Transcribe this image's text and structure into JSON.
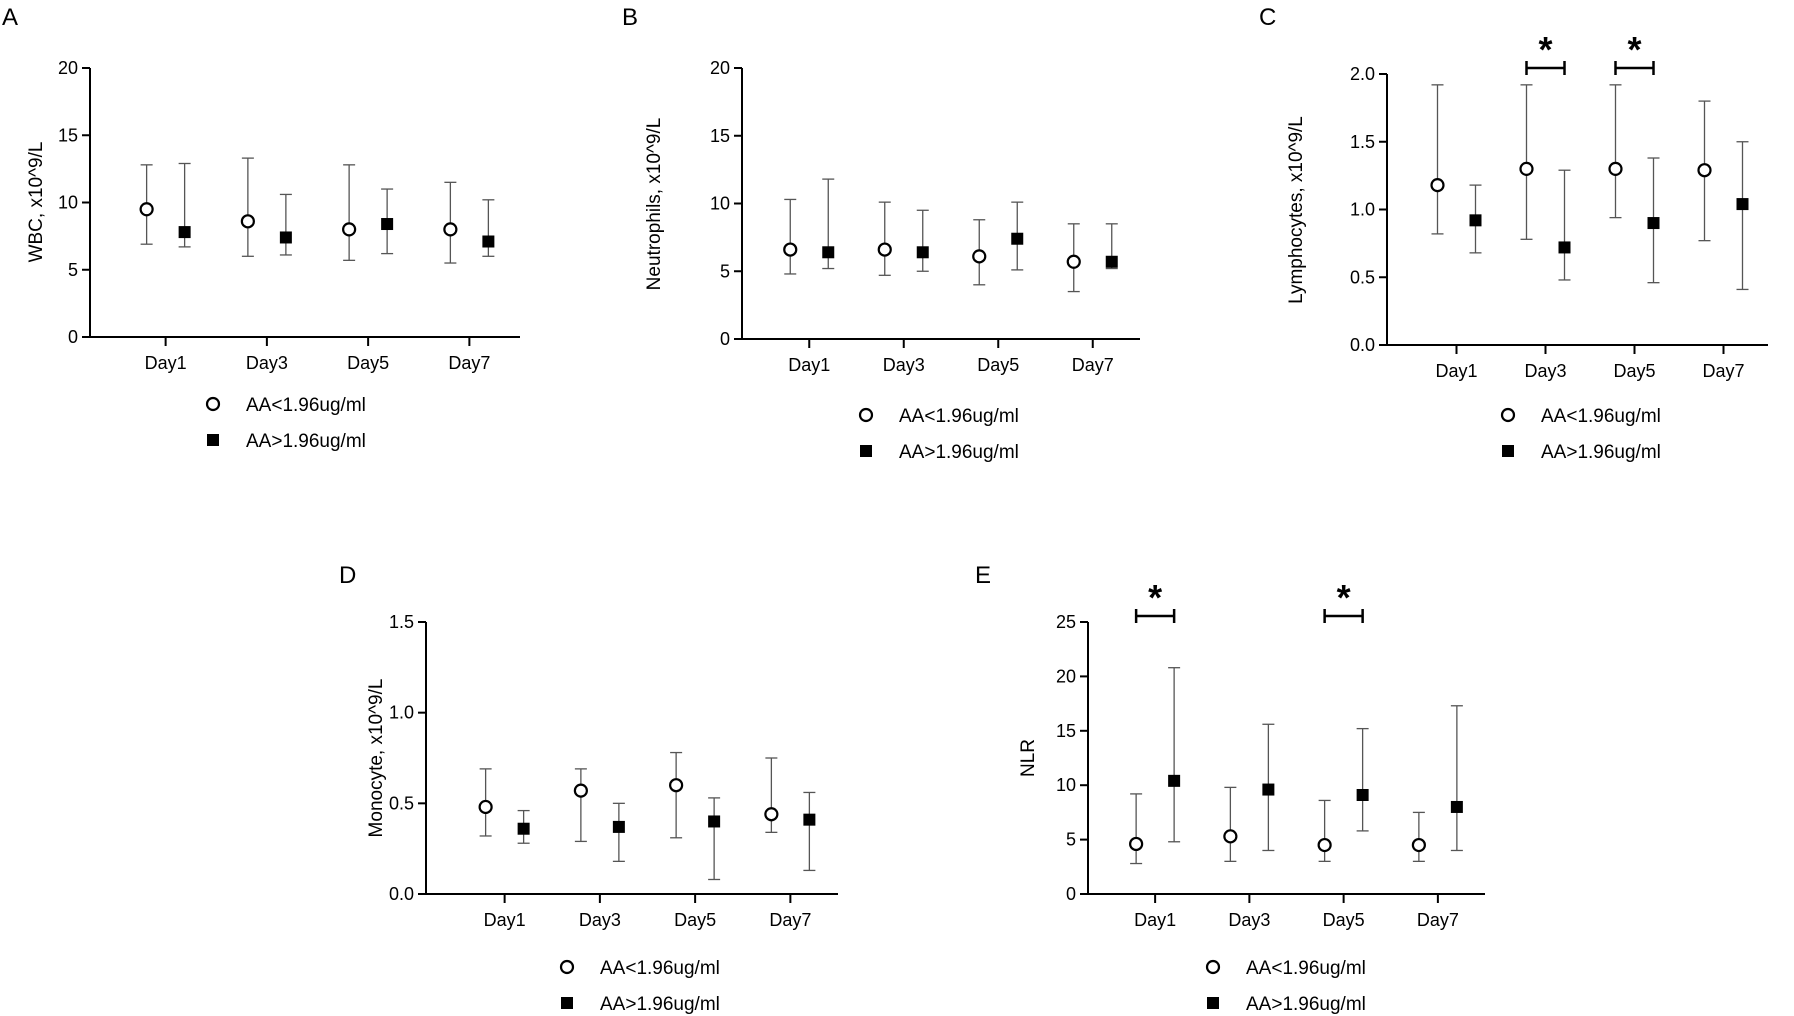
{
  "chart_data": [
    {
      "type": "scatter",
      "panel": "A",
      "ylabel": "WBC, x10^9/L",
      "categories": [
        "Day1",
        "Day3",
        "Day5",
        "Day7"
      ],
      "ylim": [
        0,
        20
      ],
      "yticks": [
        0,
        5,
        10,
        15,
        20
      ],
      "series": [
        {
          "name": "AA<1.96ug/ml",
          "marker": "open-circle",
          "values": [
            9.5,
            8.6,
            8.0,
            8.0
          ],
          "lower": [
            6.9,
            6.0,
            5.7,
            5.5
          ],
          "upper": [
            12.8,
            13.3,
            12.8,
            11.5
          ]
        },
        {
          "name": "AA>1.96ug/ml",
          "marker": "filled-square",
          "values": [
            7.8,
            7.4,
            8.4,
            7.1
          ],
          "lower": [
            6.7,
            6.1,
            6.2,
            6.0
          ],
          "upper": [
            12.9,
            10.6,
            11.0,
            10.2
          ]
        }
      ],
      "significance": []
    },
    {
      "type": "scatter",
      "panel": "B",
      "ylabel": "Neutrophils, x10^9/L",
      "categories": [
        "Day1",
        "Day3",
        "Day5",
        "Day7"
      ],
      "ylim": [
        0,
        20
      ],
      "yticks": [
        0,
        5,
        10,
        15,
        20
      ],
      "series": [
        {
          "name": "AA<1.96ug/ml",
          "marker": "open-circle",
          "values": [
            6.6,
            6.6,
            6.1,
            5.7
          ],
          "lower": [
            4.8,
            4.7,
            4.0,
            3.5
          ],
          "upper": [
            10.3,
            10.1,
            8.8,
            8.5
          ]
        },
        {
          "name": "AA>1.96ug/ml",
          "marker": "filled-square",
          "values": [
            6.4,
            6.4,
            7.4,
            5.7
          ],
          "lower": [
            5.2,
            5.0,
            5.1,
            5.2
          ],
          "upper": [
            11.8,
            9.5,
            10.1,
            8.5
          ]
        }
      ],
      "significance": []
    },
    {
      "type": "scatter",
      "panel": "C",
      "ylabel": "Lymphocytes, x10^9/L",
      "categories": [
        "Day1",
        "Day3",
        "Day5",
        "Day7"
      ],
      "ylim": [
        0,
        2.0
      ],
      "yticks": [
        0.0,
        0.5,
        1.0,
        1.5,
        2.0
      ],
      "ytick_labels": [
        "0.0",
        "0.5",
        "1.0",
        "1.5",
        "2.0"
      ],
      "series": [
        {
          "name": "AA<1.96ug/ml",
          "marker": "open-circle",
          "values": [
            1.18,
            1.3,
            1.3,
            1.29
          ],
          "lower": [
            0.82,
            0.78,
            0.94,
            0.77
          ],
          "upper": [
            1.92,
            1.92,
            1.92,
            1.8
          ]
        },
        {
          "name": "AA>1.96ug/ml",
          "marker": "filled-square",
          "values": [
            0.92,
            0.72,
            0.9,
            1.04
          ],
          "lower": [
            0.68,
            0.48,
            0.46,
            0.41
          ],
          "upper": [
            1.18,
            1.29,
            1.38,
            1.5
          ]
        }
      ],
      "significance": [
        {
          "category": "Day3",
          "label": "*"
        },
        {
          "category": "Day5",
          "label": "*"
        }
      ]
    },
    {
      "type": "scatter",
      "panel": "D",
      "ylabel": "Monocyte, x10^9/L",
      "categories": [
        "Day1",
        "Day3",
        "Day5",
        "Day7"
      ],
      "ylim": [
        0,
        1.5
      ],
      "yticks": [
        0.0,
        0.5,
        1.0,
        1.5
      ],
      "ytick_labels": [
        "0.0",
        "0.5",
        "1.0",
        "1.5"
      ],
      "series": [
        {
          "name": "AA<1.96ug/ml",
          "marker": "open-circle",
          "values": [
            0.48,
            0.57,
            0.6,
            0.44
          ],
          "lower": [
            0.32,
            0.29,
            0.31,
            0.34
          ],
          "upper": [
            0.69,
            0.69,
            0.78,
            0.75
          ]
        },
        {
          "name": "AA>1.96ug/ml",
          "marker": "filled-square",
          "values": [
            0.36,
            0.37,
            0.4,
            0.41
          ],
          "lower": [
            0.28,
            0.18,
            0.08,
            0.13
          ],
          "upper": [
            0.46,
            0.5,
            0.53,
            0.56
          ]
        }
      ],
      "significance": []
    },
    {
      "type": "scatter",
      "panel": "E",
      "ylabel": "NLR",
      "categories": [
        "Day1",
        "Day3",
        "Day5",
        "Day7"
      ],
      "ylim": [
        0,
        25
      ],
      "yticks": [
        0,
        5,
        10,
        15,
        20,
        25
      ],
      "series": [
        {
          "name": "AA<1.96ug/ml",
          "marker": "open-circle",
          "values": [
            4.6,
            5.3,
            4.5,
            4.5
          ],
          "lower": [
            2.8,
            3.0,
            3.0,
            3.0
          ],
          "upper": [
            9.2,
            9.8,
            8.6,
            7.5
          ]
        },
        {
          "name": "AA>1.96ug/ml",
          "marker": "filled-square",
          "values": [
            10.4,
            9.6,
            9.1,
            8.0
          ],
          "lower": [
            4.8,
            4.0,
            5.8,
            4.0
          ],
          "upper": [
            20.8,
            15.6,
            15.2,
            17.3
          ]
        }
      ],
      "significance": [
        {
          "category": "Day1",
          "label": "*"
        },
        {
          "category": "Day5",
          "label": "*"
        }
      ]
    }
  ]
}
